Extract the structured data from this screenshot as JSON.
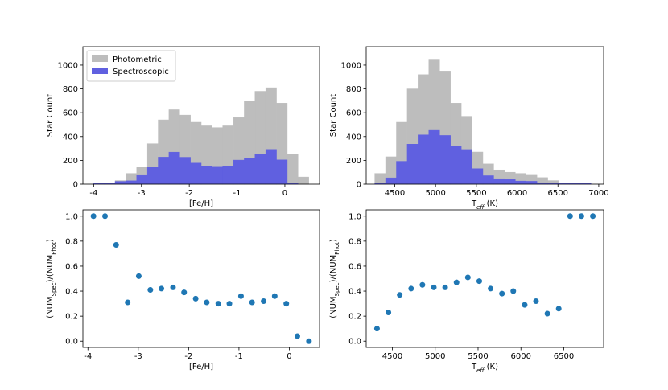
{
  "chart_data": [
    {
      "type": "histogram",
      "xlabel": "[Fe/H]",
      "ylabel": "Star Count",
      "bins": [
        -4,
        -3.775,
        -3.55,
        -3.325,
        -3.1,
        -2.875,
        -2.65,
        -2.425,
        -2.2,
        -1.975,
        -1.75,
        -1.525,
        -1.3,
        -1.075,
        -0.85,
        -0.625,
        -0.4,
        -0.175,
        0.05,
        0.275,
        0.5
      ],
      "series": [
        {
          "name": "Photometric",
          "color": "#bdbdbd",
          "values": [
            5,
            10,
            30,
            90,
            140,
            340,
            540,
            625,
            580,
            520,
            490,
            475,
            490,
            560,
            700,
            780,
            810,
            680,
            250,
            60
          ]
        },
        {
          "name": "Spectroscopic",
          "color": "#6060e0",
          "values": [
            5,
            10,
            23,
            28,
            73,
            140,
            227,
            269,
            226,
            177,
            152,
            143,
            147,
            202,
            217,
            250,
            292,
            204,
            10,
            0
          ]
        }
      ],
      "xlim": [
        -4.225,
        0.725
      ],
      "xticks": [
        -4,
        -3,
        -2,
        -1,
        0
      ],
      "ylim": [
        0,
        1155
      ],
      "yticks": [
        0,
        200,
        400,
        600,
        800,
        1000
      ],
      "legend": "upper left"
    },
    {
      "type": "histogram",
      "xlabel": [
        "T",
        "eff",
        " (K)"
      ],
      "ylabel": "Star Count",
      "bins": [
        4255,
        4387.5,
        4520,
        4652.5,
        4785,
        4917.5,
        5050,
        5182.5,
        5315,
        5447.5,
        5580,
        5712.5,
        5845,
        5977.5,
        6110,
        6242.5,
        6375,
        6507.5,
        6640,
        6772.5,
        6905
      ],
      "series": [
        {
          "name": "Photometric",
          "color": "#bdbdbd",
          "values": [
            90,
            230,
            520,
            800,
            920,
            1050,
            950,
            680,
            570,
            270,
            170,
            120,
            100,
            90,
            75,
            55,
            30,
            10,
            5,
            5
          ]
        },
        {
          "name": "Spectroscopic",
          "color": "#6060e0",
          "values": [
            9,
            53,
            192,
            336,
            414,
            452,
            409,
            320,
            291,
            130,
            71,
            46,
            40,
            26,
            24,
            12,
            8,
            10,
            5,
            5
          ]
        }
      ],
      "xlim": [
        4150,
        7060
      ],
      "xticks": [
        4500,
        5000,
        5500,
        6000,
        6500,
        7000
      ],
      "ylim": [
        0,
        1155
      ],
      "yticks": [
        0,
        200,
        400,
        600,
        800,
        1000
      ]
    },
    {
      "type": "scatter",
      "xlabel": "[Fe/H]",
      "ylabel": [
        "(NUM",
        "Spec",
        ")/(NUM",
        "Phot",
        ")"
      ],
      "color": "#1f77b4",
      "x": [
        -3.89,
        -3.66,
        -3.44,
        -3.21,
        -2.99,
        -2.76,
        -2.54,
        -2.31,
        -2.09,
        -1.86,
        -1.64,
        -1.41,
        -1.19,
        -0.96,
        -0.74,
        -0.51,
        -0.29,
        -0.06,
        0.16,
        0.39
      ],
      "values": [
        1.0,
        1.0,
        0.77,
        0.31,
        0.52,
        0.41,
        0.42,
        0.43,
        0.39,
        0.34,
        0.31,
        0.3,
        0.3,
        0.36,
        0.31,
        0.32,
        0.36,
        0.3,
        0.04,
        0.0
      ],
      "xlim": [
        -4.1,
        0.6
      ],
      "xticks": [
        -4,
        -3,
        -2,
        -1,
        0
      ],
      "ylim": [
        -0.05,
        1.05
      ],
      "yticks": [
        {
          "value": 0,
          "label": "0.0"
        },
        0.2,
        0.4,
        0.6,
        0.8,
        {
          "value": 1,
          "label": "1.0"
        }
      ]
    },
    {
      "type": "scatter",
      "xlabel": [
        "T",
        "eff",
        " (K)"
      ],
      "ylabel": [
        "(NUM",
        "Spec",
        ")/(NUM",
        "Phot",
        ")"
      ],
      "color": "#1f77b4",
      "x": [
        4321,
        4454,
        4586,
        4719,
        4851,
        4984,
        5116,
        5249,
        5381,
        5514,
        5646,
        5779,
        5911,
        6044,
        6176,
        6309,
        6441,
        6574,
        6706,
        6839
      ],
      "values": [
        0.1,
        0.23,
        0.37,
        0.42,
        0.45,
        0.43,
        0.43,
        0.47,
        0.51,
        0.48,
        0.42,
        0.38,
        0.4,
        0.29,
        0.32,
        0.22,
        0.26,
        1.0,
        1.0,
        1.0
      ],
      "xlim": [
        4195,
        6965
      ],
      "xticks": [
        4500,
        5000,
        5500,
        6000,
        6500
      ],
      "ylim": [
        -0.05,
        1.05
      ],
      "yticks": [
        {
          "value": 0,
          "label": "0.0"
        },
        0.2,
        0.4,
        0.6,
        0.8,
        {
          "value": 1,
          "label": "1.0"
        }
      ]
    }
  ]
}
